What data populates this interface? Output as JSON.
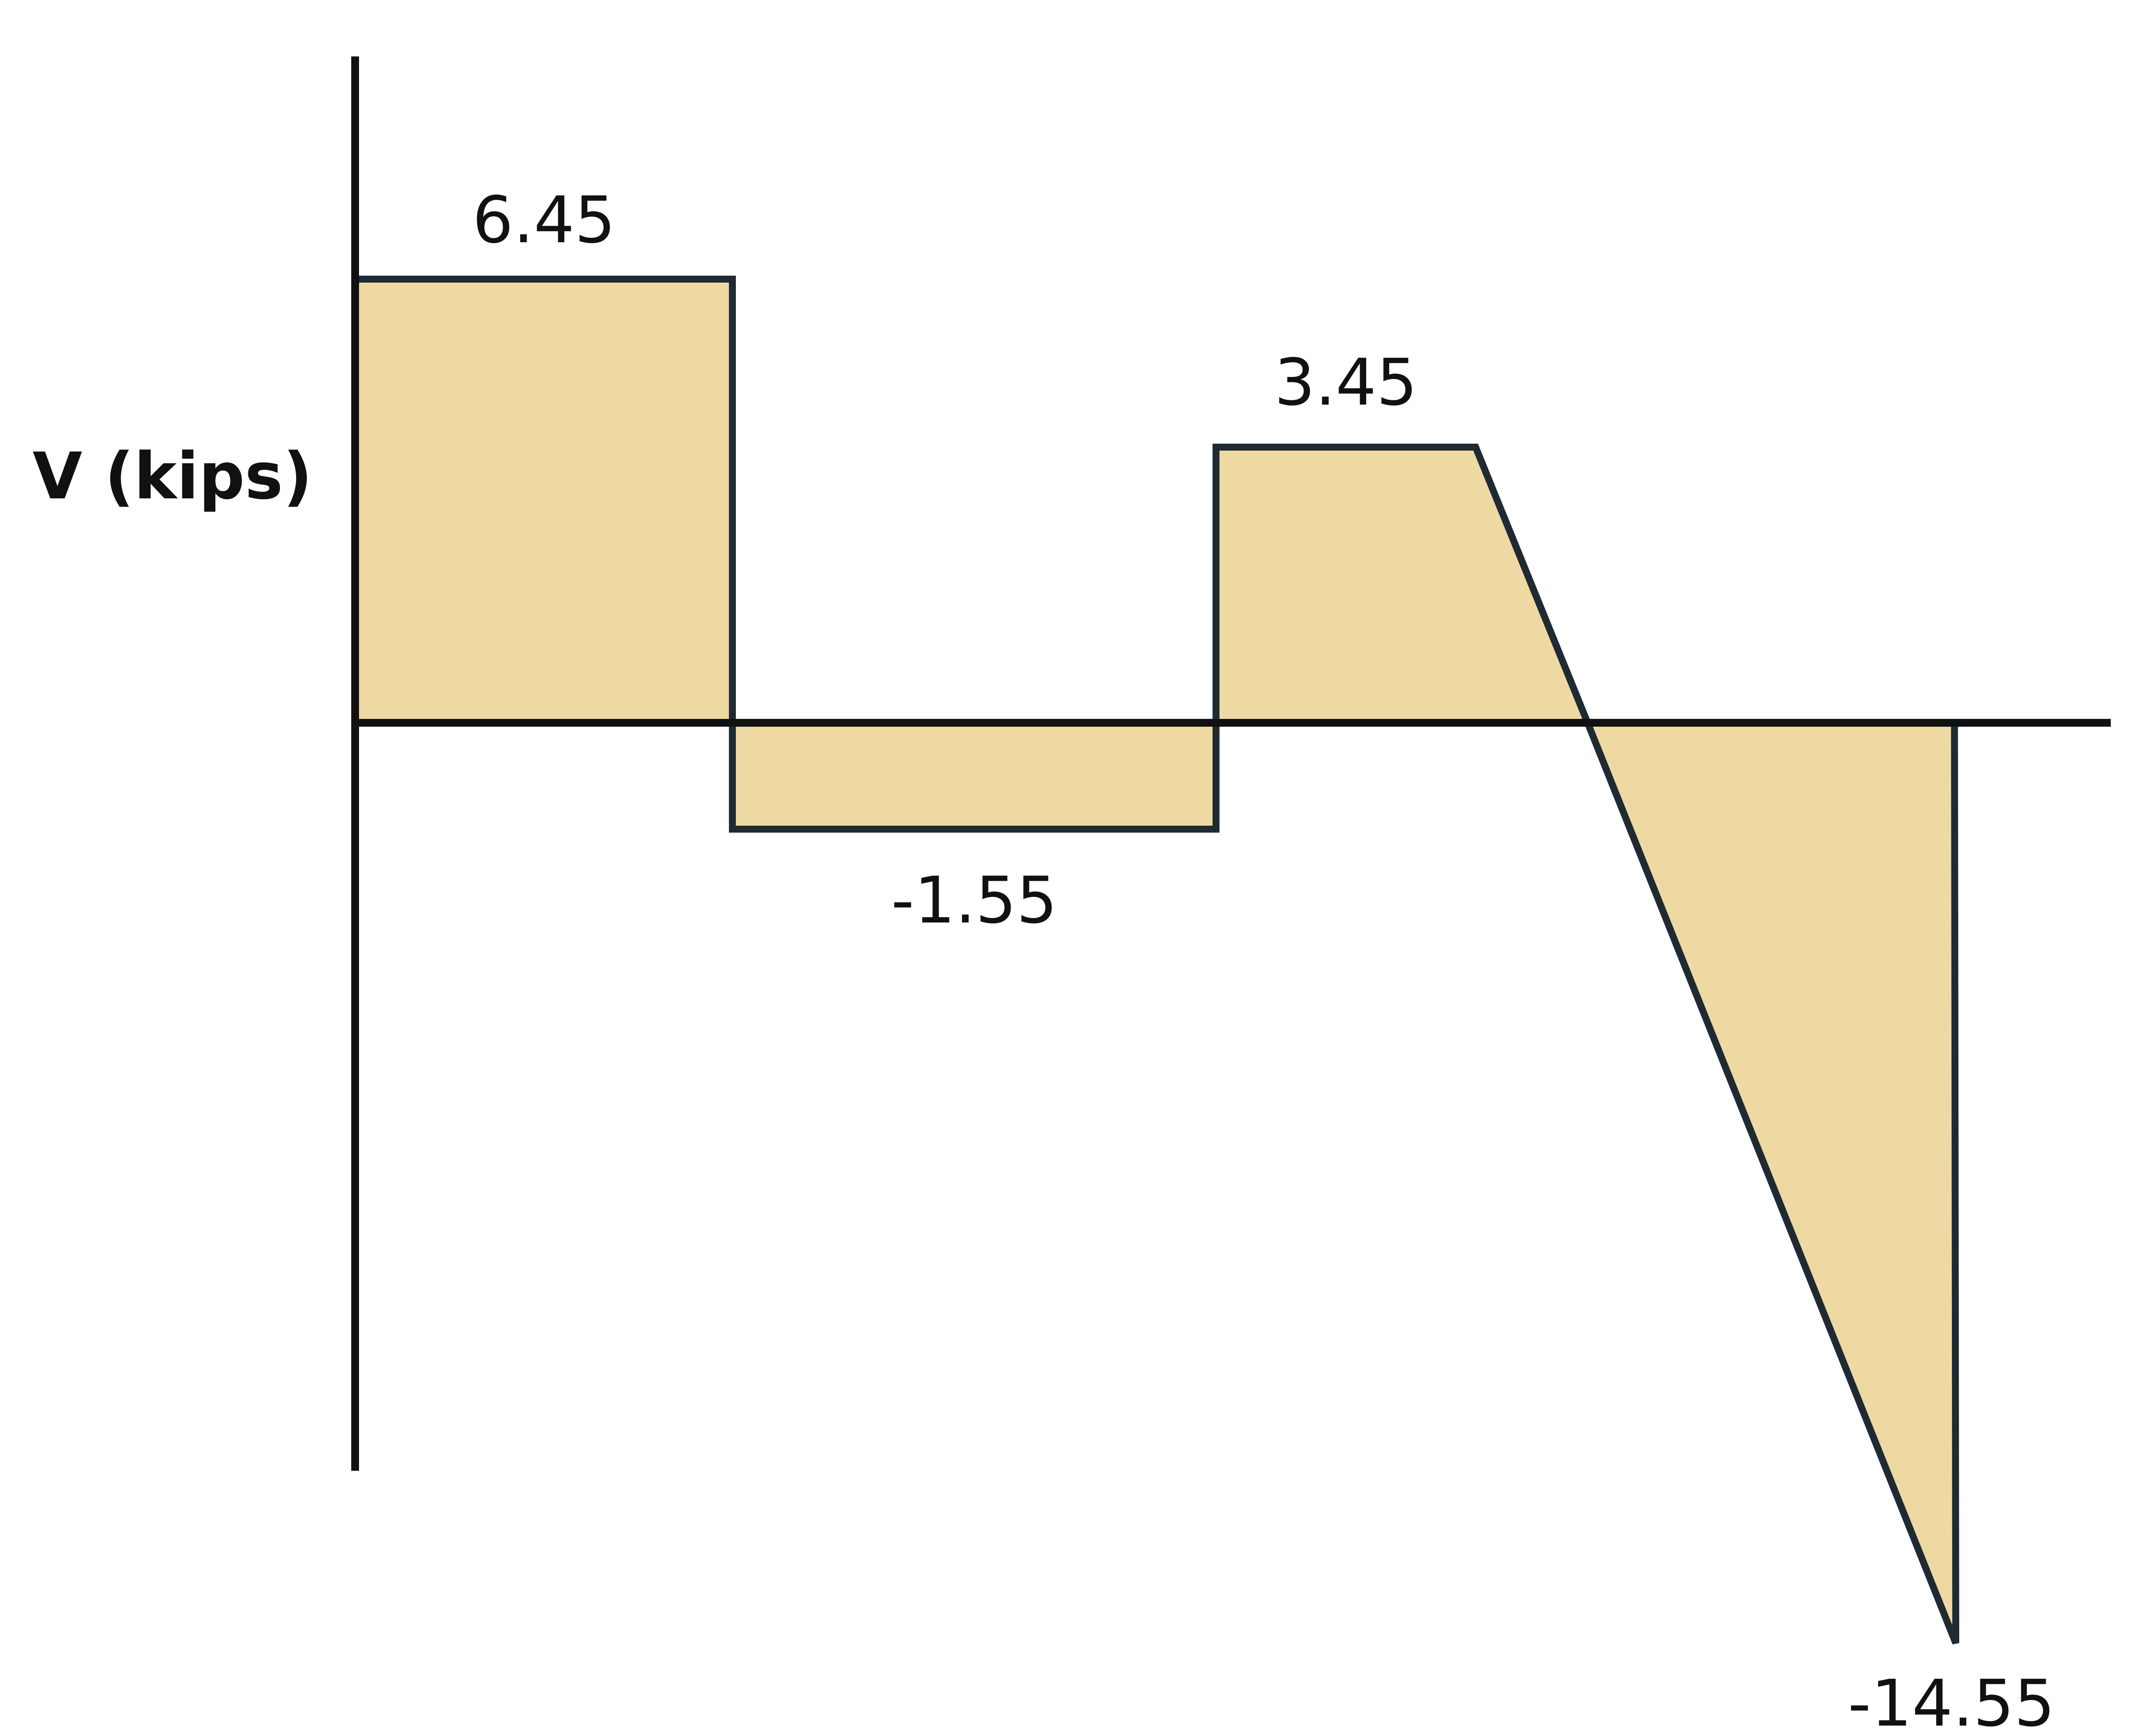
{
  "axis_title": "V (kips)",
  "colors": {
    "fill": "#efd9a3",
    "outline": "#1f2a33",
    "axis": "#111111"
  },
  "chart_data": {
    "type": "area",
    "title": "",
    "ylabel": "V (kips)",
    "xlabel": "",
    "regions": [
      {
        "name": "region-1",
        "shape": "rectangle",
        "v_start": 6.45,
        "v_end": 6.45
      },
      {
        "name": "region-2",
        "shape": "rectangle",
        "v_start": -1.55,
        "v_end": -1.55
      },
      {
        "name": "region-3",
        "shape": "trapezoid",
        "v_start": 3.45,
        "v_end": 0
      },
      {
        "name": "region-4",
        "shape": "triangle",
        "v_start": 0,
        "v_end": -14.55
      }
    ],
    "labels": {
      "v1": "6.45",
      "v2": "-1.55",
      "v3": "3.45",
      "v4": "-14.55"
    }
  }
}
